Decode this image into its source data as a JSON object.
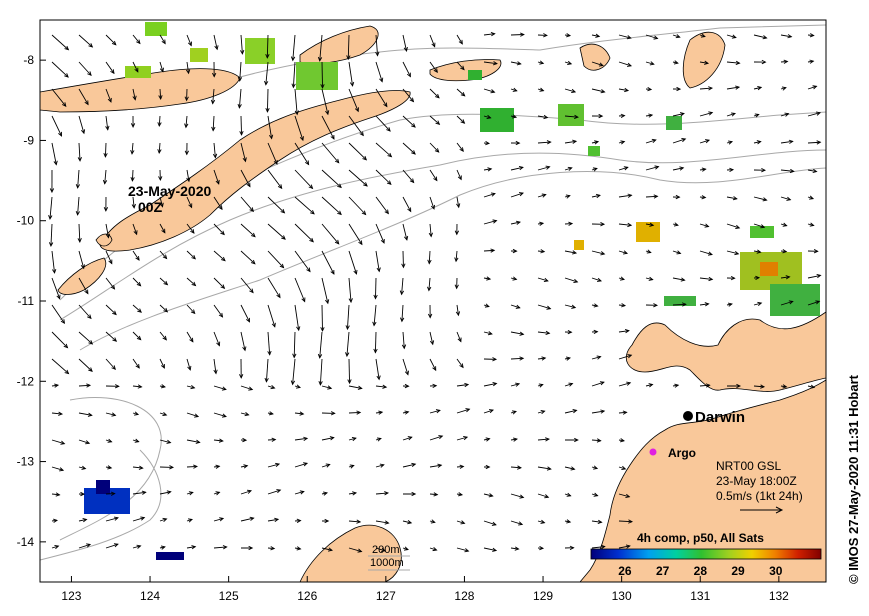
{
  "map": {
    "lon_ticks": [
      "123",
      "124",
      "125",
      "126",
      "127",
      "128",
      "129",
      "130",
      "131",
      "132"
    ],
    "lat_ticks": [
      "-8",
      "-9",
      "-10",
      "-11",
      "-12",
      "-13",
      "-14"
    ],
    "lon_range": [
      122.6,
      132.6
    ],
    "lat_range": [
      -14.5,
      -7.5
    ],
    "date_label_1": "23-May-2020",
    "date_label_2": "00Z",
    "darwin_label": "Darwin",
    "argo_label": "Argo",
    "info_line_1": "NRT00 GSL",
    "info_line_2": "23-May 18:00Z",
    "info_line_3": "0.5m/s (1kt 24h)",
    "depth_label_1": "200m",
    "depth_label_2": "1000m",
    "colorbar_title": "4h comp, p50, All Sats",
    "colorbar_ticks": [
      "26",
      "27",
      "28",
      "29",
      "30"
    ],
    "credit": "© IMOS 27-May-2020 11:31 Hobart"
  },
  "colors": {
    "land": "#f9c89a",
    "contour": "#a8a8a8",
    "argo": "#e020e0"
  }
}
